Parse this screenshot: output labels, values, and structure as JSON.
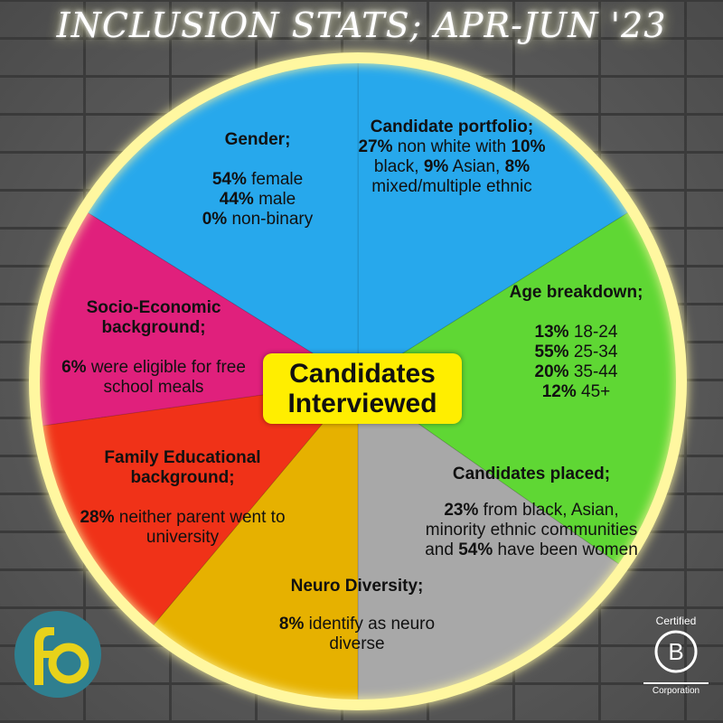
{
  "title": "INCLUSION STATS; APR-JUN '23",
  "center_label": "Candidates\nInterviewed",
  "segments": [
    {
      "key": "candidate-portfolio",
      "color": "#27a8ec",
      "heading": "Candidate portfolio;",
      "text": "27% non white with 10% black, 9% Asian, 8% mixed/multiple ethnic"
    },
    {
      "key": "age-breakdown",
      "color": "#5fd734",
      "heading": "Age breakdown;",
      "items": [
        {
          "pct": "13%",
          "text": "18-24"
        },
        {
          "pct": "55%",
          "text": "25-34"
        },
        {
          "pct": "20%",
          "text": "35-44"
        },
        {
          "pct": "12%",
          "text": "45+"
        }
      ]
    },
    {
      "key": "candidates-placed",
      "color": "#a8a8a8",
      "heading": "Candidates placed;",
      "text": "23% from black, Asian, minority ethnic communities and 54% have been women"
    },
    {
      "key": "neuro-diversity",
      "color": "#e6b100",
      "heading": "Neuro Diversity;",
      "text": "8% identify as neuro diverse"
    },
    {
      "key": "family-educational-background",
      "color": "#f03218",
      "heading": "Family Educational background;",
      "text": "28% neither parent went to university"
    },
    {
      "key": "socio-economic-background",
      "color": "#e0207c",
      "heading": "Socio-Economic background;",
      "text": "6% were eligible for free school meals"
    },
    {
      "key": "gender",
      "color": "#27a8ec",
      "heading": "Gender;",
      "items": [
        {
          "pct": "54%",
          "text": "female"
        },
        {
          "pct": "44%",
          "text": "male"
        },
        {
          "pct": "0%",
          "text": "non-binary"
        }
      ]
    }
  ],
  "logo": {
    "text": "fo",
    "color": "#e8d21a",
    "bg": "#2f7f8f"
  },
  "badge": {
    "certified": "Certified",
    "letter": "B",
    "corporation": "Corporation"
  }
}
